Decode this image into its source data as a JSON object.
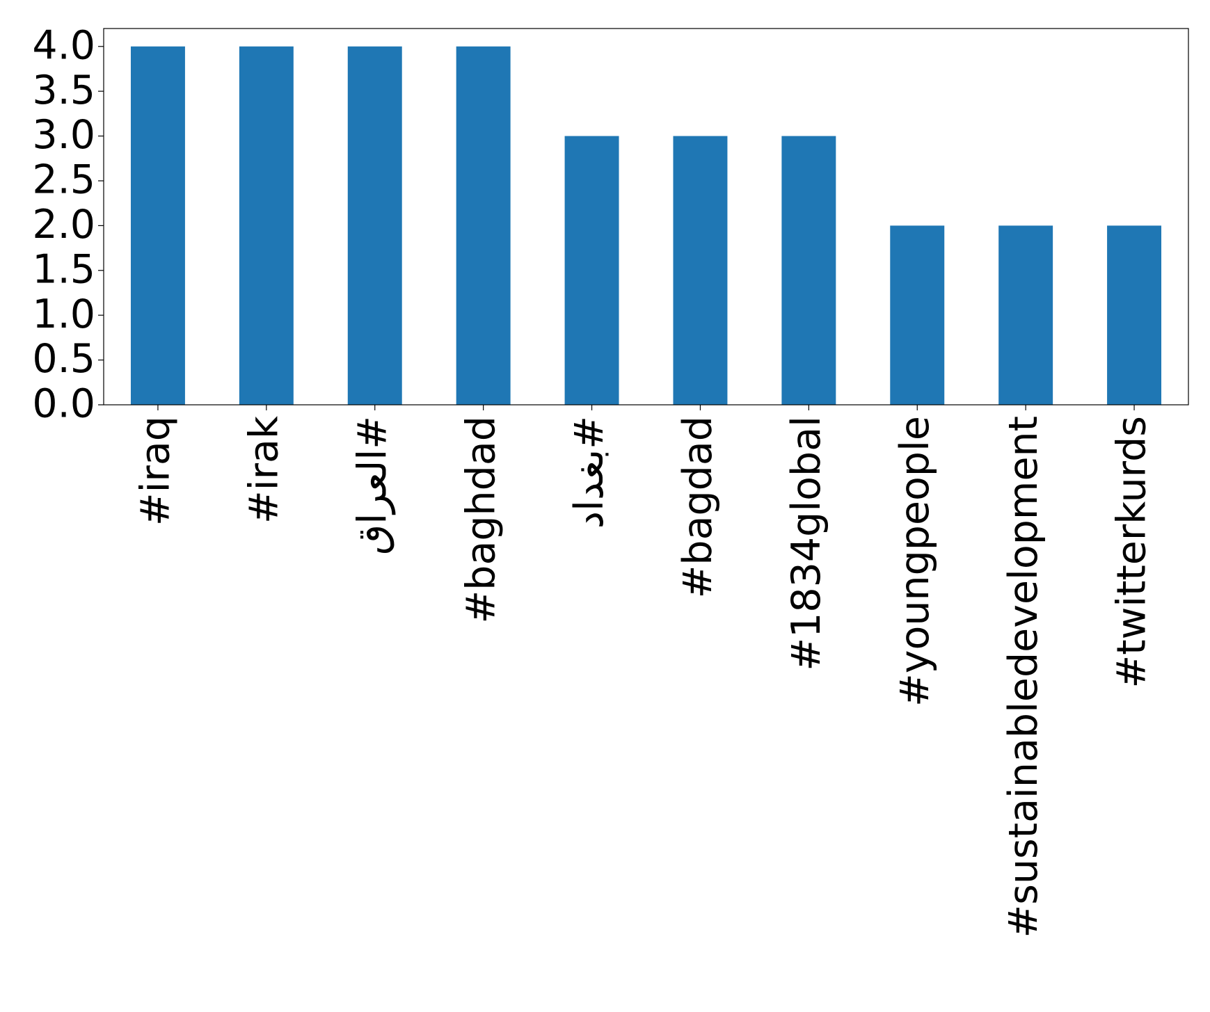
{
  "chart_data": {
    "type": "bar",
    "categories": [
      "#iraq",
      "#irak",
      "#العراق",
      "#baghdad",
      "#بغداد",
      "#bagdad",
      "#1834global",
      "#youngpeople",
      "#sustainabledevelopment",
      "#twitterkurds"
    ],
    "values": [
      4,
      4,
      4,
      4,
      3,
      3,
      3,
      2,
      2,
      2
    ],
    "color": "#1f77b4",
    "ylim": [
      0,
      4.2
    ],
    "yticks": [
      {
        "value": 0,
        "label": "0.0"
      },
      {
        "value": 0.5,
        "label": "0.5"
      },
      {
        "value": 1,
        "label": "1.0"
      },
      {
        "value": 1.5,
        "label": "1.5"
      },
      {
        "value": 2,
        "label": "2.0"
      },
      {
        "value": 2.5,
        "label": "2.5"
      },
      {
        "value": 3,
        "label": "3.0"
      },
      {
        "value": 3.5,
        "label": "3.5"
      },
      {
        "value": 4,
        "label": "4.0"
      }
    ],
    "grid": false
  }
}
